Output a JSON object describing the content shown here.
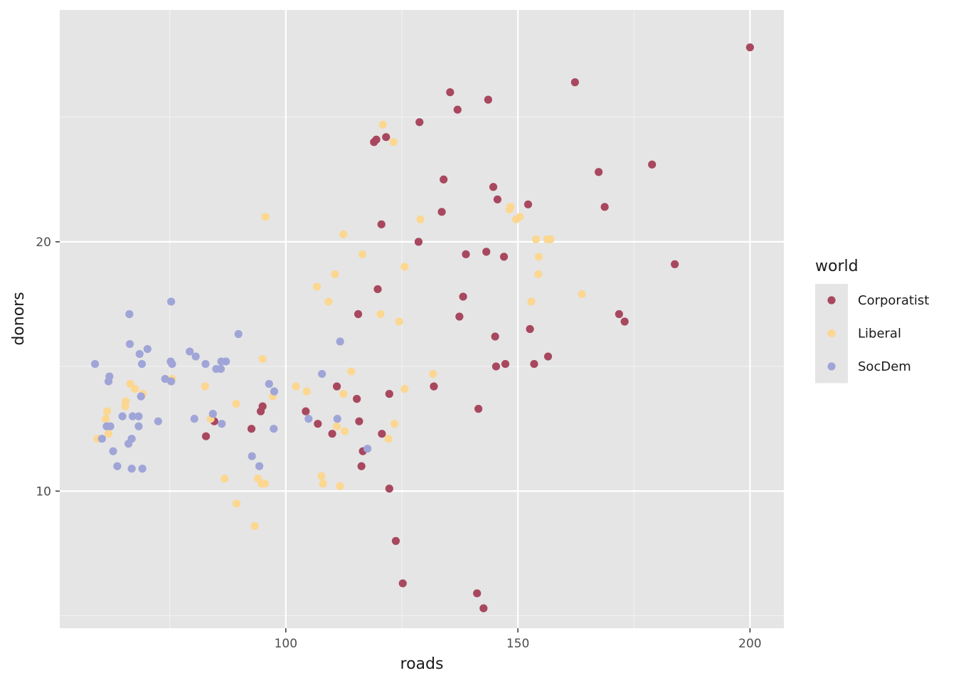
{
  "chart_data": {
    "type": "scatter",
    "xlabel": "roads",
    "ylabel": "donors",
    "xlim": [
      51.3,
      207.3
    ],
    "ylim": [
      4.5,
      29.3
    ],
    "x_ticks": [
      100,
      150,
      200
    ],
    "y_ticks": [
      10,
      20
    ],
    "x_tick_labels": [
      "100",
      "150",
      "200"
    ],
    "y_tick_labels": [
      "10",
      "20"
    ],
    "grid": true,
    "legend": {
      "title": "world",
      "position": "right",
      "entries": [
        "Corporatist",
        "Liberal",
        "SocDem"
      ]
    },
    "colors": {
      "Corporatist": "#a8485f",
      "Liberal": "#fcd791",
      "SocDem": "#a0a5d8",
      "panel_background": "#e5e5e5",
      "grid_major": "#ffffff",
      "grid_minor": "#f2f2f2"
    },
    "series": [
      {
        "name": "Corporatist",
        "points": [
          [
            200.0,
            27.8
          ],
          [
            162.3,
            26.4
          ],
          [
            135.4,
            26.0
          ],
          [
            143.6,
            25.7
          ],
          [
            137.0,
            25.3
          ],
          [
            128.8,
            24.8
          ],
          [
            121.6,
            24.2
          ],
          [
            119.5,
            24.1
          ],
          [
            119.0,
            24.0
          ],
          [
            178.9,
            23.1
          ],
          [
            167.4,
            22.8
          ],
          [
            134.0,
            22.5
          ],
          [
            144.7,
            22.2
          ],
          [
            145.6,
            21.7
          ],
          [
            152.2,
            21.5
          ],
          [
            168.7,
            21.4
          ],
          [
            133.6,
            21.2
          ],
          [
            120.6,
            20.7
          ],
          [
            128.6,
            20.0
          ],
          [
            143.2,
            19.6
          ],
          [
            138.8,
            19.5
          ],
          [
            147.0,
            19.4
          ],
          [
            183.8,
            19.1
          ],
          [
            119.8,
            18.1
          ],
          [
            138.2,
            17.8
          ],
          [
            171.8,
            17.1
          ],
          [
            173.0,
            16.8
          ],
          [
            115.6,
            17.1
          ],
          [
            137.4,
            17.0
          ],
          [
            152.6,
            16.5
          ],
          [
            145.1,
            16.2
          ],
          [
            156.5,
            15.4
          ],
          [
            147.3,
            15.1
          ],
          [
            145.3,
            15.0
          ],
          [
            153.5,
            15.1
          ],
          [
            111.0,
            14.2
          ],
          [
            131.9,
            14.2
          ],
          [
            122.3,
            13.9
          ],
          [
            115.3,
            13.7
          ],
          [
            141.5,
            13.3
          ],
          [
            95.0,
            13.4
          ],
          [
            94.6,
            13.2
          ],
          [
            104.3,
            13.2
          ],
          [
            84.6,
            12.8
          ],
          [
            106.9,
            12.7
          ],
          [
            115.8,
            12.8
          ],
          [
            92.6,
            12.5
          ],
          [
            110.0,
            12.3
          ],
          [
            120.7,
            12.3
          ],
          [
            82.8,
            12.2
          ],
          [
            116.6,
            11.6
          ],
          [
            116.3,
            11.0
          ],
          [
            122.3,
            10.1
          ],
          [
            123.7,
            8.0
          ],
          [
            125.2,
            6.3
          ],
          [
            141.2,
            5.9
          ],
          [
            142.6,
            5.3
          ]
        ]
      },
      {
        "name": "Liberal",
        "points": [
          [
            120.9,
            24.7
          ],
          [
            123.2,
            24.0
          ],
          [
            95.6,
            21.0
          ],
          [
            129.0,
            20.9
          ],
          [
            148.4,
            21.4
          ],
          [
            148.2,
            21.3
          ],
          [
            149.6,
            20.9
          ],
          [
            150.4,
            21.0
          ],
          [
            112.4,
            20.3
          ],
          [
            153.9,
            20.1
          ],
          [
            156.3,
            20.1
          ],
          [
            157.0,
            20.1
          ],
          [
            116.5,
            19.5
          ],
          [
            154.5,
            19.4
          ],
          [
            125.6,
            19.0
          ],
          [
            110.6,
            18.7
          ],
          [
            154.4,
            18.7
          ],
          [
            106.7,
            18.2
          ],
          [
            163.8,
            17.9
          ],
          [
            109.2,
            17.6
          ],
          [
            152.9,
            17.6
          ],
          [
            120.4,
            17.1
          ],
          [
            124.4,
            16.8
          ],
          [
            95.0,
            15.3
          ],
          [
            114.1,
            14.8
          ],
          [
            131.7,
            14.7
          ],
          [
            102.2,
            14.2
          ],
          [
            104.5,
            14.0
          ],
          [
            112.4,
            13.9
          ],
          [
            125.6,
            14.1
          ],
          [
            82.6,
            14.2
          ],
          [
            97.2,
            13.8
          ],
          [
            89.3,
            13.5
          ],
          [
            66.5,
            14.3
          ],
          [
            67.5,
            14.1
          ],
          [
            69.2,
            13.9
          ],
          [
            65.5,
            13.6
          ],
          [
            65.4,
            13.4
          ],
          [
            61.5,
            13.2
          ],
          [
            61.2,
            12.9
          ],
          [
            61.8,
            12.3
          ],
          [
            59.4,
            12.1
          ],
          [
            83.8,
            12.9
          ],
          [
            111.0,
            12.6
          ],
          [
            112.7,
            12.4
          ],
          [
            123.4,
            12.7
          ],
          [
            122.1,
            12.1
          ],
          [
            86.8,
            10.5
          ],
          [
            107.7,
            10.6
          ],
          [
            108.0,
            10.3
          ],
          [
            94.0,
            10.5
          ],
          [
            94.8,
            10.3
          ],
          [
            95.5,
            10.3
          ],
          [
            111.7,
            10.2
          ],
          [
            89.4,
            9.5
          ],
          [
            93.3,
            8.6
          ],
          [
            75.5,
            14.5
          ]
        ]
      },
      {
        "name": "SocDem",
        "points": [
          [
            75.3,
            17.6
          ],
          [
            66.3,
            17.1
          ],
          [
            89.8,
            16.3
          ],
          [
            111.7,
            16.0
          ],
          [
            66.4,
            15.9
          ],
          [
            70.2,
            15.7
          ],
          [
            79.3,
            15.6
          ],
          [
            68.5,
            15.5
          ],
          [
            80.6,
            15.4
          ],
          [
            58.9,
            15.1
          ],
          [
            75.2,
            15.2
          ],
          [
            75.5,
            15.1
          ],
          [
            69.0,
            15.1
          ],
          [
            82.7,
            15.1
          ],
          [
            86.1,
            15.2
          ],
          [
            87.1,
            15.2
          ],
          [
            85.0,
            14.9
          ],
          [
            86.0,
            14.9
          ],
          [
            62.0,
            14.6
          ],
          [
            61.8,
            14.4
          ],
          [
            74.0,
            14.5
          ],
          [
            75.3,
            14.4
          ],
          [
            107.8,
            14.7
          ],
          [
            96.4,
            14.3
          ],
          [
            97.5,
            14.0
          ],
          [
            68.8,
            13.8
          ],
          [
            67.0,
            13.0
          ],
          [
            68.3,
            13.0
          ],
          [
            64.8,
            13.0
          ],
          [
            84.3,
            13.1
          ],
          [
            72.5,
            12.8
          ],
          [
            80.3,
            12.9
          ],
          [
            104.9,
            12.9
          ],
          [
            111.1,
            12.9
          ],
          [
            68.3,
            12.6
          ],
          [
            61.4,
            12.6
          ],
          [
            62.2,
            12.6
          ],
          [
            86.2,
            12.7
          ],
          [
            97.4,
            12.5
          ],
          [
            60.4,
            12.1
          ],
          [
            66.8,
            12.1
          ],
          [
            66.1,
            11.9
          ],
          [
            62.8,
            11.6
          ],
          [
            117.6,
            11.7
          ],
          [
            92.7,
            11.4
          ],
          [
            63.7,
            11.0
          ],
          [
            66.8,
            10.9
          ],
          [
            69.1,
            10.9
          ],
          [
            94.3,
            11.0
          ]
        ]
      }
    ]
  }
}
